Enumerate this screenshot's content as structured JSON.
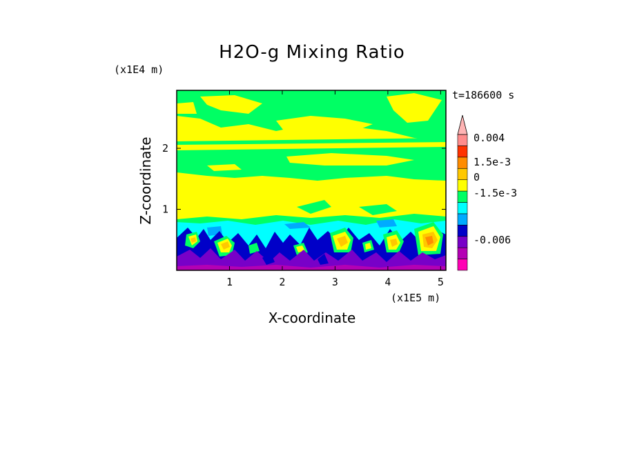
{
  "chart_data": {
    "type": "heatmap",
    "title": "H2O-g Mixing Ratio",
    "xlabel": "X-coordinate",
    "ylabel": "Z-coordinate",
    "x_scale_label": "(x1E5 m)",
    "y_scale_label": "(x1E4 m)",
    "time_label": "t=186600 s",
    "xlim": [
      0,
      5.1
    ],
    "ylim": [
      0,
      2.95
    ],
    "x_ticks": [
      1,
      2,
      3,
      4,
      5
    ],
    "y_ticks": [
      1,
      2
    ],
    "x_tick_labels": [
      "1",
      "2",
      "3",
      "4",
      "5"
    ],
    "y_tick_labels": [
      "1",
      "2"
    ],
    "colorbar": {
      "levels": [
        {
          "color": "#ff00b4"
        },
        {
          "color": "#b400b4"
        },
        {
          "color": "#7800c8"
        },
        {
          "color": "#0000c8"
        },
        {
          "color": "#00aaff"
        },
        {
          "color": "#00ffff"
        },
        {
          "color": "#00ff64"
        },
        {
          "color": "#ffff00"
        },
        {
          "color": "#ffc800"
        },
        {
          "color": "#ff8c00"
        },
        {
          "color": "#ff3200"
        },
        {
          "color": "#ff8c8c"
        }
      ],
      "labels": [
        {
          "text": "0.004",
          "value": 0.004
        },
        {
          "text": "1.5e-3",
          "value": 0.0015
        },
        {
          "text": "0",
          "value": 0
        },
        {
          "text": "-1.5e-3",
          "value": -0.0015
        },
        {
          "text": "-0.006",
          "value": -0.006
        }
      ]
    },
    "field_bands": [
      {
        "z": [
          0.0,
          0.1
        ],
        "class": "#7800c8"
      },
      {
        "z": [
          0.1,
          0.45
        ],
        "class": "mixed-low"
      },
      {
        "z": [
          0.45,
          0.75
        ],
        "class": "#00ffff"
      },
      {
        "z": [
          0.75,
          1.55
        ],
        "class": "#ffff00"
      },
      {
        "z": [
          1.55,
          2.05
        ],
        "class": "#00ff64"
      },
      {
        "z": [
          2.05,
          2.5
        ],
        "class": "#ffff00"
      },
      {
        "z": [
          2.5,
          2.95
        ],
        "class": "#00ff64"
      }
    ]
  }
}
